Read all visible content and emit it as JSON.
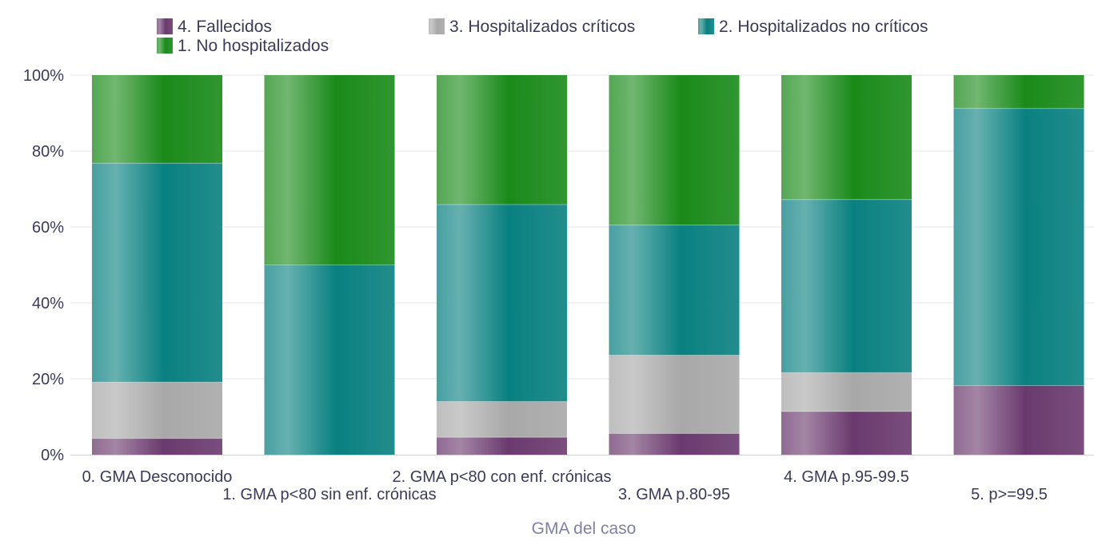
{
  "chart_data": {
    "type": "bar",
    "stacked": true,
    "percent": true,
    "title": "",
    "xlabel": "GMA del caso",
    "ylabel": "",
    "ylim": [
      0,
      100
    ],
    "yticks": [
      "0%",
      "20%",
      "40%",
      "60%",
      "80%",
      "100%"
    ],
    "grid": true,
    "legend_position": "top",
    "categories": [
      "0. GMA Desconocido",
      "1. GMA p<80 sin enf. crónicas",
      "2. GMA p<80 con enf. crónicas",
      "3. GMA p.80-95",
      "4. GMA p.95-99.5",
      "5. p>=99.5"
    ],
    "series": [
      {
        "name": "4. Fallecidos",
        "color": "#6a3a6e",
        "values": [
          4.3,
          0,
          4.6,
          5.6,
          11.4,
          18.2
        ]
      },
      {
        "name": "3. Hospitalizados críticos",
        "color": "#a8a8a8",
        "values": [
          14.8,
          0,
          9.4,
          20.6,
          10.2,
          0
        ]
      },
      {
        "name": "2. Hospitalizados no críticos",
        "color": "#0a8080",
        "values": [
          57.7,
          50.0,
          51.9,
          34.3,
          45.6,
          73.0
        ]
      },
      {
        "name": "1. No hospitalizados",
        "color": "#1a8a1a",
        "values": [
          23.2,
          50.0,
          34.1,
          39.5,
          32.8,
          8.8
        ]
      }
    ]
  }
}
